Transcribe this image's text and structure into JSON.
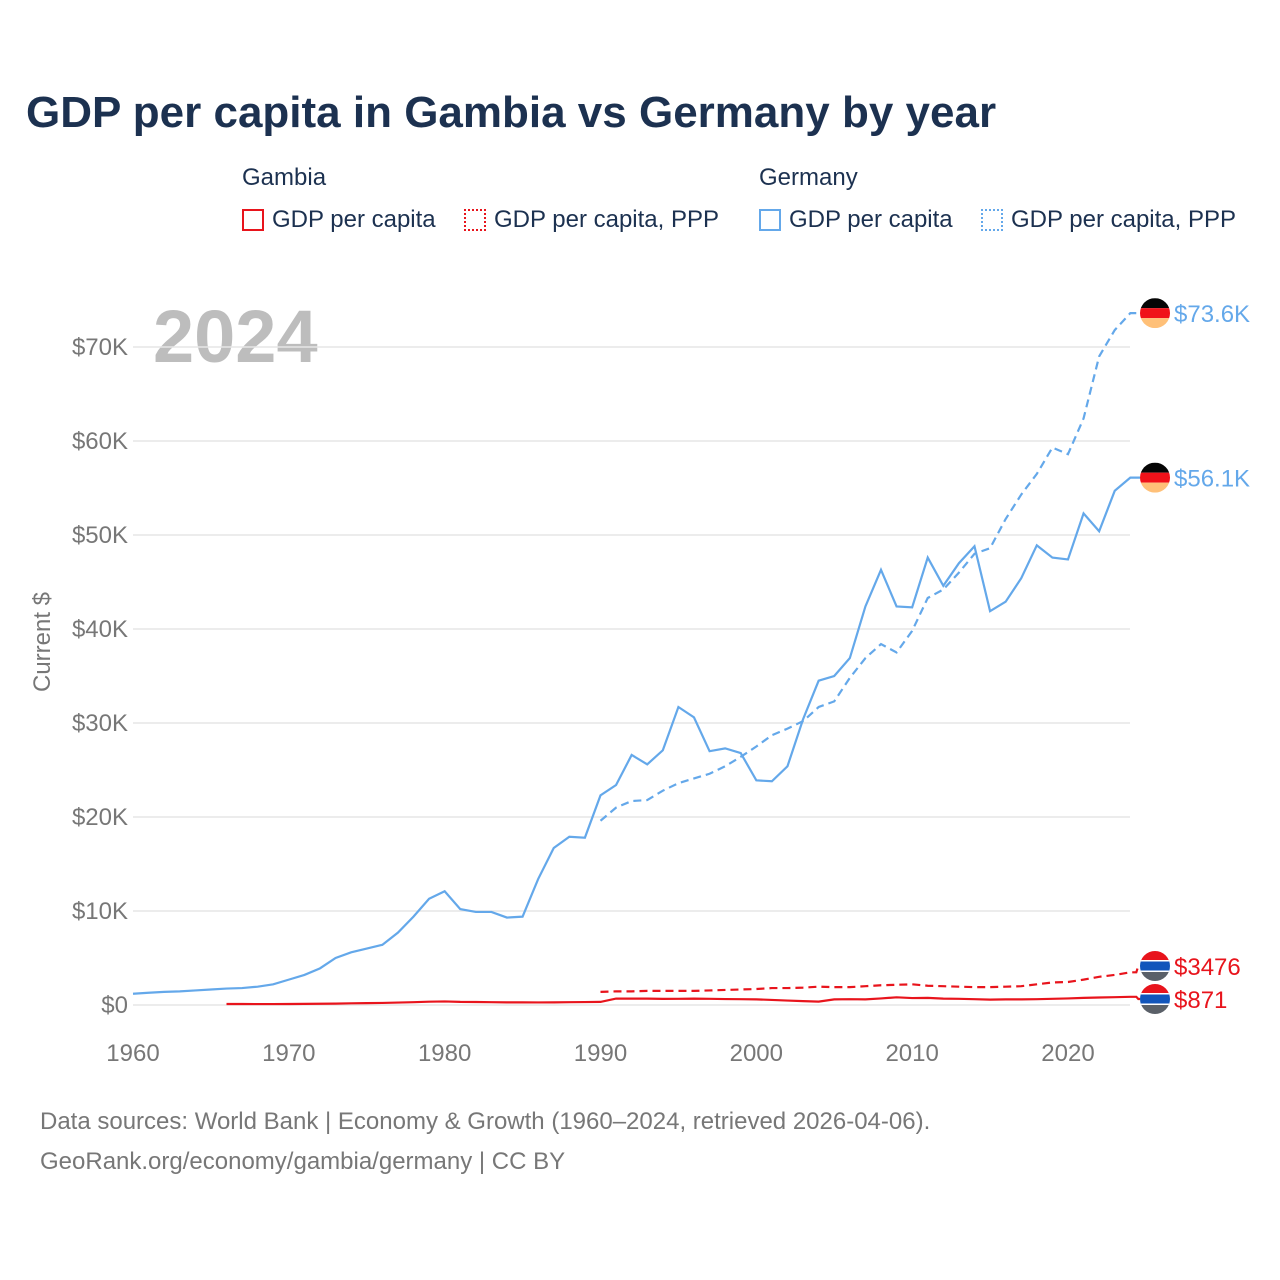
{
  "title": "GDP per capita in Gambia vs Germany by year",
  "legend": {
    "groups": [
      {
        "name": "Gambia",
        "items": [
          "GDP per capita",
          "GDP per capita, PPP"
        ],
        "color": "#e8141c"
      },
      {
        "name": "Germany",
        "items": [
          "GDP per capita",
          "GDP per capita, PPP"
        ],
        "color": "#64a8ea"
      }
    ]
  },
  "year_label": "2024",
  "footer": {
    "line1": "Data sources: World Bank | Economy & Growth (1960–2024, retrieved 2026-04-06).",
    "line2": "GeoRank.org/economy/gambia/germany | CC BY"
  },
  "chart_data": {
    "type": "line",
    "title": "GDP per capita in Gambia vs Germany by year",
    "ylabel": "Current $",
    "xlabel": "",
    "xlim": [
      1960,
      2024
    ],
    "ylim": [
      0,
      70000
    ],
    "x_ticks": [
      "1960",
      "1970",
      "1980",
      "1990",
      "2000",
      "2010",
      "2020"
    ],
    "y_ticks": [
      "$0",
      "$10K",
      "$20K",
      "$30K",
      "$40K",
      "$50K",
      "$60K",
      "$70K"
    ],
    "grid": true,
    "series": [
      {
        "name": "Germany GDP per capita",
        "country": "Germany",
        "style": "solid",
        "color": "#64a8ea",
        "start": 1960,
        "end_label": "$56.1K",
        "values_k": [
          1.2,
          1.3,
          1.4,
          1.45,
          1.55,
          1.65,
          1.75,
          1.8,
          1.95,
          2.2,
          2.7,
          3.2,
          3.9,
          5.0,
          5.6,
          6.0,
          6.4,
          7.7,
          9.4,
          11.3,
          12.1,
          10.2,
          9.9,
          9.9,
          9.3,
          9.4,
          13.4,
          16.7,
          17.9,
          17.8,
          22.3,
          23.4,
          26.6,
          25.6,
          27.1,
          31.7,
          30.6,
          27.0,
          27.3,
          26.8,
          23.9,
          23.8,
          25.4,
          30.4,
          34.5,
          35.0,
          36.9,
          42.4,
          46.3,
          42.4,
          42.3,
          47.6,
          44.6,
          47.0,
          48.8,
          41.9,
          42.9,
          45.4,
          48.9,
          47.6,
          47.4,
          52.3,
          50.4,
          54.7,
          56.1
        ]
      },
      {
        "name": "Germany GDP per capita, PPP",
        "country": "Germany",
        "style": "dashed",
        "color": "#64a8ea",
        "start": 1990,
        "end_label": "$73.6K",
        "values_k": [
          19.6,
          21.0,
          21.7,
          21.8,
          22.8,
          23.6,
          24.1,
          24.6,
          25.4,
          26.4,
          27.5,
          28.7,
          29.4,
          30.2,
          31.7,
          32.3,
          34.8,
          36.9,
          38.4,
          37.5,
          39.8,
          43.3,
          44.2,
          46.0,
          48.0,
          48.6,
          51.7,
          54.3,
          56.5,
          59.3,
          58.6,
          62.4,
          69.0,
          71.8,
          73.6
        ]
      },
      {
        "name": "Gambia GDP per capita",
        "country": "Gambia",
        "style": "solid",
        "color": "#e8141c",
        "start": 1966,
        "end_label": "$871",
        "values_k": [
          0.11,
          0.11,
          0.1,
          0.1,
          0.11,
          0.12,
          0.13,
          0.15,
          0.18,
          0.2,
          0.22,
          0.26,
          0.3,
          0.35,
          0.38,
          0.33,
          0.32,
          0.3,
          0.28,
          0.28,
          0.27,
          0.28,
          0.3,
          0.31,
          0.33,
          0.68,
          0.68,
          0.68,
          0.65,
          0.66,
          0.68,
          0.66,
          0.63,
          0.62,
          0.6,
          0.54,
          0.47,
          0.41,
          0.36,
          0.6,
          0.62,
          0.6,
          0.7,
          0.82,
          0.74,
          0.76,
          0.68,
          0.66,
          0.62,
          0.57,
          0.6,
          0.6,
          0.62,
          0.66,
          0.7,
          0.76,
          0.8,
          0.83,
          0.871
        ]
      },
      {
        "name": "Gambia GDP per capita, PPP",
        "country": "Gambia",
        "style": "dashed",
        "color": "#e8141c",
        "start": 1990,
        "end_label": "$3476",
        "values_k": [
          1.4,
          1.45,
          1.45,
          1.5,
          1.5,
          1.5,
          1.5,
          1.55,
          1.6,
          1.65,
          1.7,
          1.8,
          1.8,
          1.85,
          1.95,
          1.9,
          1.9,
          2.0,
          2.1,
          2.15,
          2.2,
          2.05,
          2.0,
          1.95,
          1.9,
          1.9,
          1.95,
          2.0,
          2.2,
          2.4,
          2.45,
          2.7,
          3.0,
          3.2,
          3.476
        ]
      }
    ]
  }
}
